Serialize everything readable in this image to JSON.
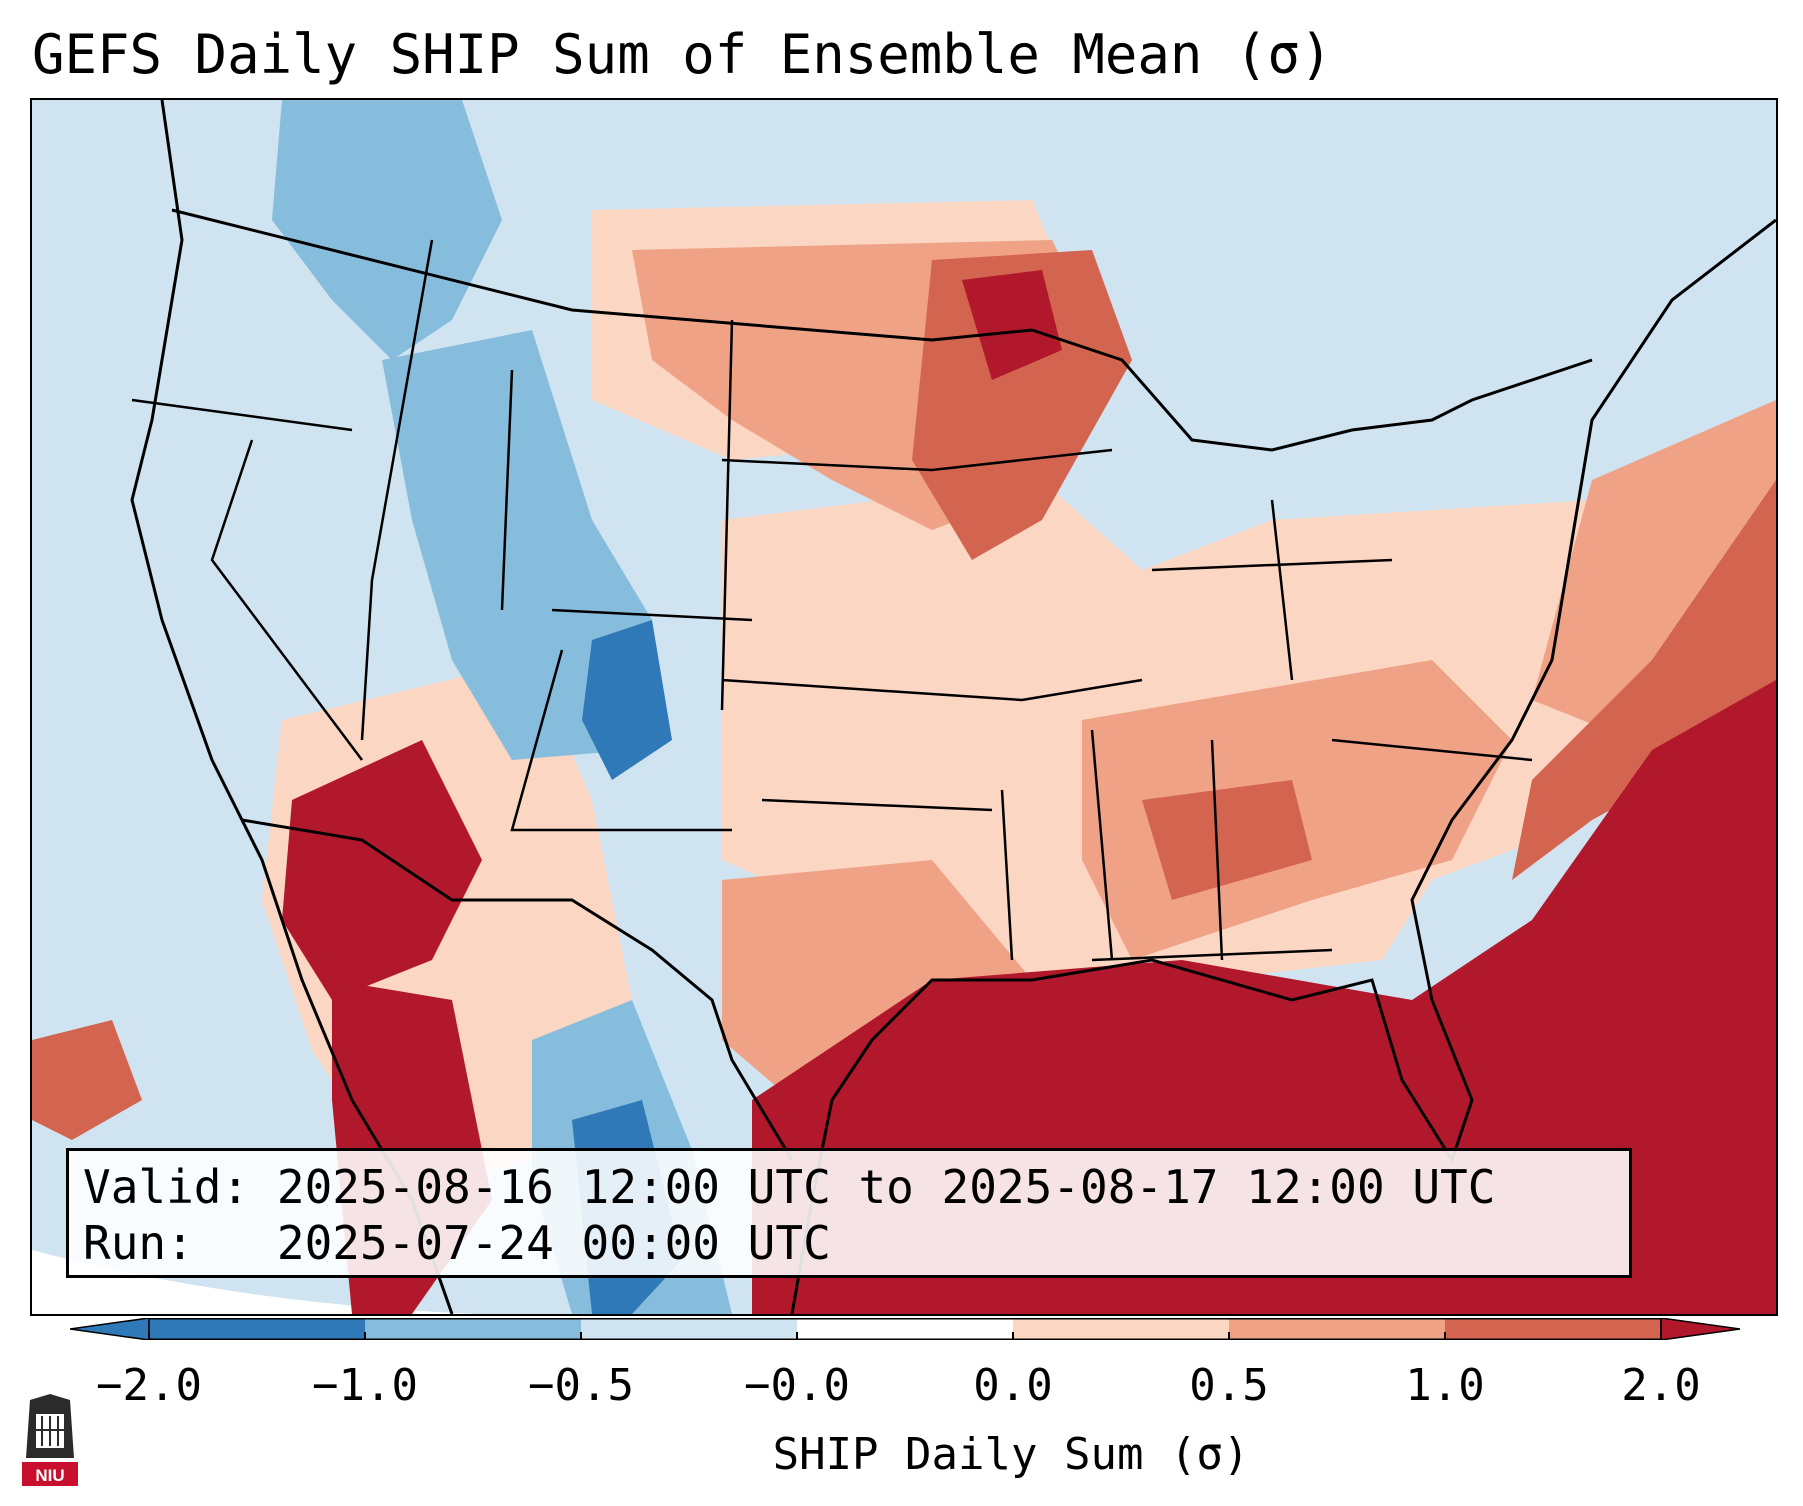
{
  "title": "GEFS Daily SHIP Sum of Ensemble Mean (σ)",
  "info": {
    "valid_label": "Valid:",
    "valid_value": "2025-08-16 12:00 UTC to 2025-08-17 12:00 UTC",
    "run_label": "Run:",
    "run_value": "2025-07-24 00:00 UTC"
  },
  "colorbar": {
    "label": "SHIP Daily Sum (σ)",
    "ticks": [
      "−2.0",
      "−1.0",
      "−0.5",
      "−0.0",
      "0.0",
      "0.5",
      "1.0",
      "2.0"
    ],
    "colors": [
      "#2f79b8",
      "#86bcdc",
      "#cfe3f0",
      "#ffffff",
      "#fbd6c3",
      "#f0a286",
      "#d36450",
      "#b2182b"
    ]
  },
  "logo": {
    "text": "NIU"
  }
}
